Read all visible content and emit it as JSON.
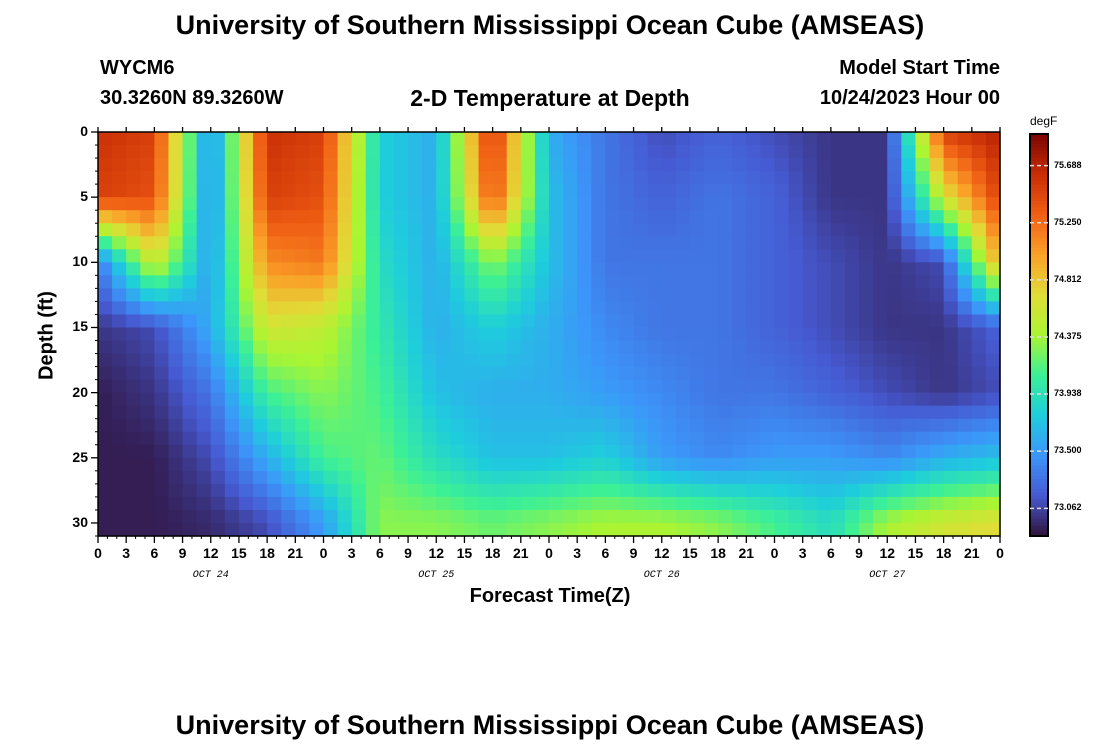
{
  "header": {
    "title": "University of Southern Mississippi Ocean Cube (AMSEAS)",
    "station": "WYCM6",
    "location": "30.3260N  89.3260W",
    "subtitle": "2-D Temperature at Depth",
    "model_start_label": "Model Start Time",
    "model_start": "10/24/2023 Hour 00",
    "footer_title": "University of Southern Mississippi Ocean Cube (AMSEAS)"
  },
  "chart_data": {
    "type": "heatmap",
    "title": "2-D Temperature at Depth",
    "xlabel": "Forecast Time(Z)",
    "ylabel": "Depth (ft)",
    "x_tick_labels": [
      "0",
      "3",
      "6",
      "9",
      "12",
      "15",
      "18",
      "21",
      "0",
      "3",
      "6",
      "9",
      "12",
      "15",
      "18",
      "21",
      "0",
      "3",
      "6",
      "9",
      "12",
      "15",
      "18",
      "21",
      "0",
      "3",
      "6",
      "9",
      "12",
      "15",
      "18",
      "21",
      "0"
    ],
    "x_day_labels": [
      "OCT 24",
      "OCT 25",
      "OCT 26",
      "OCT 27"
    ],
    "xlim_hours": [
      0,
      96
    ],
    "y_tick_labels": [
      "0",
      "5",
      "10",
      "15",
      "20",
      "25",
      "30"
    ],
    "ylim": [
      0,
      31
    ],
    "y_inverted": true,
    "colorbar": {
      "unit": "degF",
      "labels": [
        "75.688",
        "75.250",
        "74.812",
        "74.375",
        "73.938",
        "73.500",
        "73.062"
      ],
      "values": [
        75.688,
        75.25,
        74.812,
        74.375,
        73.938,
        73.5,
        73.062
      ],
      "range": [
        72.85,
        75.93
      ]
    },
    "depth_levels_ft": [
      0,
      5,
      10,
      15,
      20,
      25,
      30
    ],
    "time_hours": [
      0,
      6,
      12,
      18,
      24,
      30,
      36,
      42,
      48,
      54,
      60,
      66,
      72,
      78,
      84,
      90,
      96
    ],
    "temperature_degF": [
      [
        75.6,
        75.5,
        73.4,
        75.6,
        75.5,
        73.8,
        73.6,
        75.6,
        73.6,
        73.3,
        73.1,
        73.2,
        73.1,
        73.0,
        73.0,
        75.5,
        75.7
      ],
      [
        75.5,
        75.4,
        73.4,
        75.5,
        75.4,
        73.8,
        73.6,
        75.4,
        73.7,
        73.3,
        73.2,
        73.3,
        73.2,
        73.0,
        73.0,
        74.6,
        75.5
      ],
      [
        73.3,
        74.6,
        73.5,
        75.1,
        75.2,
        73.9,
        73.6,
        74.3,
        73.7,
        73.3,
        73.3,
        73.3,
        73.2,
        73.1,
        73.0,
        73.1,
        75.0
      ],
      [
        73.0,
        73.1,
        73.6,
        74.6,
        74.5,
        74.0,
        73.6,
        73.8,
        73.6,
        73.4,
        73.3,
        73.3,
        73.2,
        73.1,
        73.0,
        73.0,
        73.2
      ],
      [
        72.9,
        73.0,
        73.3,
        74.1,
        74.3,
        74.1,
        73.7,
        73.6,
        73.6,
        73.5,
        73.4,
        73.3,
        73.3,
        73.2,
        73.1,
        73.0,
        73.1
      ],
      [
        72.9,
        72.9,
        73.1,
        73.6,
        74.1,
        74.2,
        73.9,
        73.7,
        73.7,
        73.8,
        73.5,
        73.4,
        73.5,
        73.5,
        73.4,
        73.6,
        73.7
      ],
      [
        72.9,
        72.9,
        72.95,
        73.1,
        73.5,
        74.3,
        74.3,
        74.2,
        74.3,
        74.4,
        74.4,
        74.3,
        74.1,
        73.9,
        74.4,
        74.6,
        74.7
      ]
    ]
  }
}
